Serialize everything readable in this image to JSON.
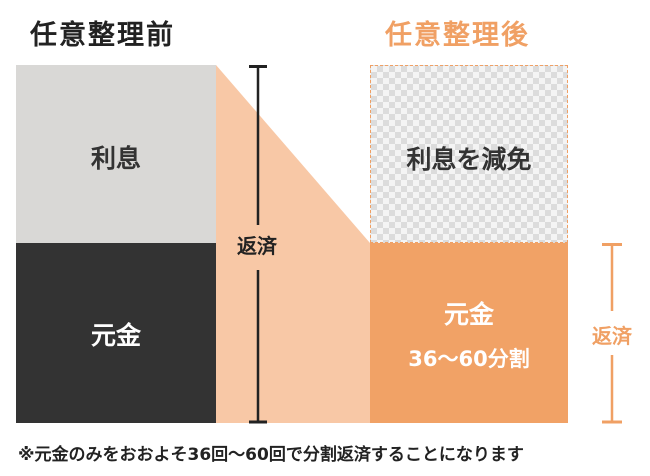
{
  "titles": {
    "before": "任意整理前",
    "after": "任意整理後"
  },
  "before": {
    "interest_label": "利息",
    "principal_label": "元金",
    "repayment_label": "返済"
  },
  "after": {
    "interest_label": "利息を減免",
    "principal_label": "元金",
    "installment_label": "36〜60分割",
    "repayment_label": "返済"
  },
  "footnote": "※元金のみをおおよそ36回〜60回で分割返済することになります",
  "colors": {
    "orange_accent": "#f0a064",
    "orange_fill": "#f1a266",
    "peach_connector": "#f8c8a6",
    "gray_interest": "#d9d8d6",
    "dark_principal": "#333333",
    "text_dark": "#222222"
  }
}
